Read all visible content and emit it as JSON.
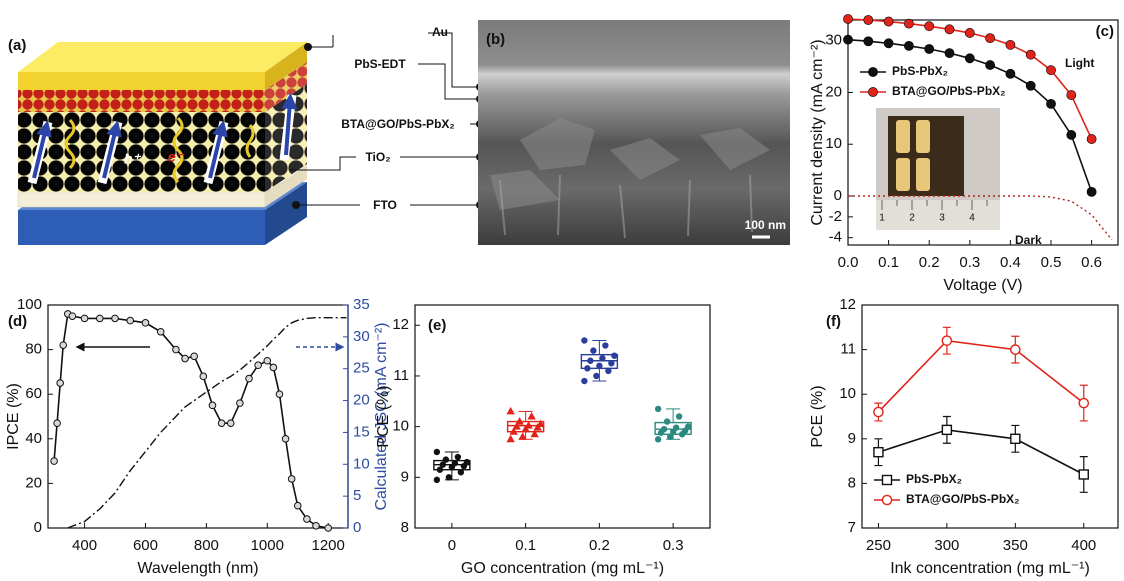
{
  "panel_a": {
    "panel_label": "(a)",
    "layers": [
      "Au",
      "PbS-EDT",
      "BTA@GO/PbS-PbX₂",
      "TiO₂",
      "FTO"
    ],
    "carriers": [
      "h⁺",
      "e⁻"
    ]
  },
  "panel_b": {
    "panel_label": "(b)",
    "scale_bar": "100 nm"
  },
  "chart_data": [
    {
      "type": "line",
      "panel_label": "(c)",
      "x_label": "Voltage (V)",
      "y_label": "Current density (mA cm⁻²)",
      "x": [
        0,
        0.05,
        0.1,
        0.15,
        0.2,
        0.25,
        0.3,
        0.35,
        0.4,
        0.45,
        0.5,
        0.55,
        0.6,
        0.65
      ],
      "xlim": [
        0,
        0.665
      ],
      "xticks": [
        {
          "value": 0,
          "label": "0.0"
        },
        0.1,
        0.2,
        0.3,
        0.4,
        0.5,
        0.6
      ],
      "ylim": [
        -4.7,
        34
      ],
      "y_break": 0,
      "yticks": [
        -4,
        -2,
        0,
        10,
        20,
        30
      ],
      "legend": "upper left",
      "series": [
        {
          "name": "PbS-PbX₂",
          "color": "#111111",
          "marker": "ball",
          "values": [
            30.2,
            29.9,
            29.5,
            29.0,
            28.4,
            27.6,
            26.6,
            25.3,
            23.6,
            21.3,
            17.8,
            11.8,
            0.8,
            null
          ]
        },
        {
          "name": "BTA@GO/PbS-PbX₂",
          "color": "#e0241b",
          "marker": "ball",
          "values": [
            34.2,
            34.0,
            33.7,
            33.3,
            32.8,
            32.2,
            31.5,
            30.5,
            29.2,
            27.3,
            24.3,
            19.5,
            11.0,
            null
          ]
        },
        {
          "color": "#b5261e",
          "dash": "dot",
          "values": [
            0,
            0,
            0,
            0,
            0,
            0,
            0,
            0,
            0,
            0,
            -0.1,
            -0.5,
            -1.8,
            -4.2
          ]
        }
      ],
      "annotations": [
        "Light",
        "Dark"
      ],
      "inset_labels": [
        "1",
        "2",
        "3",
        "4"
      ]
    },
    {
      "type": "line",
      "panel_label": "(d)",
      "x_label": "Wavelength (nm)",
      "y_label": "IPCE (%)",
      "y2_label": "Calculated JSC (mA cm⁻²)",
      "x": [
        300,
        310,
        320,
        330,
        345,
        360,
        400,
        450,
        500,
        550,
        600,
        650,
        700,
        730,
        760,
        790,
        820,
        850,
        880,
        910,
        940,
        970,
        1000,
        1020,
        1040,
        1060,
        1080,
        1100,
        1130,
        1160,
        1200,
        1260
      ],
      "xlim": [
        280,
        1265
      ],
      "xticks": [
        400,
        600,
        800,
        1000,
        1200
      ],
      "ylim": [
        0,
        100
      ],
      "yticks": [
        0,
        20,
        40,
        60,
        80,
        100
      ],
      "y2lim": [
        0,
        35
      ],
      "y2ticks": [
        0,
        5,
        10,
        15,
        20,
        25,
        30,
        35
      ],
      "y2_color": "#2f4da0",
      "series": [
        {
          "color": "#111111",
          "marker": "half",
          "values": [
            30,
            47,
            65,
            82,
            96,
            95,
            94,
            94,
            94,
            93,
            92,
            88,
            80,
            76,
            77,
            68,
            55,
            47,
            47,
            56,
            67,
            73,
            75,
            72,
            60,
            40,
            22,
            10,
            4,
            1,
            0,
            null
          ]
        },
        {
          "color": "#111111",
          "dash": "dashdot",
          "axis": "y2",
          "values": [
            null,
            null,
            null,
            null,
            0,
            0.3,
            1,
            3,
            5.5,
            9,
            12,
            15,
            17.5,
            19,
            20,
            21,
            22,
            23,
            23.8,
            24.8,
            26,
            27.3,
            28.6,
            29.6,
            30.5,
            31.5,
            32.2,
            32.6,
            32.9,
            33,
            33,
            33
          ]
        }
      ]
    },
    {
      "type": "box",
      "panel_label": "(e)",
      "x_label": "GO concentration (mg mL⁻¹)",
      "y_label": "PCE (%)",
      "categories": [
        "0",
        "0.1",
        "0.2",
        "0.3"
      ],
      "ylim": [
        8,
        12.4
      ],
      "yticks": [
        8,
        9,
        10,
        11,
        12
      ],
      "boxes": [
        {
          "color": "#111111",
          "marker": "dot",
          "whisker_low": 8.95,
          "q1": 9.15,
          "median": 9.25,
          "q3": 9.33,
          "whisker_high": 9.5,
          "points": [
            9.5,
            9.4,
            9.35,
            9.3,
            9.28,
            9.25,
            9.22,
            9.2,
            9.15,
            9.1,
            9.0,
            8.95
          ]
        },
        {
          "color": "#e0241b",
          "marker": "triangle",
          "whisker_low": 9.75,
          "q1": 9.9,
          "median": 10.02,
          "q3": 10.1,
          "whisker_high": 10.3,
          "points": [
            10.3,
            10.2,
            10.1,
            10.05,
            10.02,
            10.0,
            9.98,
            9.95,
            9.9,
            9.85,
            9.8,
            9.75
          ]
        },
        {
          "color": "#2a3f9d",
          "marker": "dot",
          "whisker_low": 10.9,
          "q1": 11.15,
          "median": 11.3,
          "q3": 11.42,
          "whisker_high": 11.7,
          "points": [
            11.7,
            11.6,
            11.5,
            11.4,
            11.35,
            11.3,
            11.25,
            11.2,
            11.15,
            11.1,
            11.0,
            10.9
          ]
        },
        {
          "color": "#2a8a80",
          "marker": "dot",
          "whisker_low": 9.75,
          "q1": 9.85,
          "median": 9.95,
          "q3": 10.08,
          "whisker_high": 10.35,
          "points": [
            10.35,
            10.2,
            10.1,
            10.0,
            9.98,
            9.95,
            9.92,
            9.9,
            9.88,
            9.85,
            9.8,
            9.75
          ]
        }
      ]
    },
    {
      "type": "line",
      "panel_label": "(f)",
      "x_label": "Ink concentration (mg mL⁻¹)",
      "y_label": "PCE (%)",
      "x": [
        250,
        300,
        350,
        400
      ],
      "xlim": [
        238,
        425
      ],
      "xticks": [
        250,
        300,
        350,
        400
      ],
      "ylim": [
        7,
        12
      ],
      "yticks": [
        7,
        8,
        9,
        10,
        11,
        12
      ],
      "legend": "lower left",
      "series": [
        {
          "name": "PbS-PbX₂",
          "color": "#111111",
          "marker": "open-square",
          "values": [
            8.7,
            9.2,
            9.0,
            8.2
          ],
          "errors": [
            0.3,
            0.3,
            0.3,
            0.4
          ]
        },
        {
          "name": "BTA@GO/PbS-PbX₂",
          "color": "#e0241b",
          "marker": "open-circle",
          "values": [
            9.6,
            11.2,
            11.0,
            9.8
          ],
          "errors": [
            0.2,
            0.3,
            0.3,
            0.4
          ]
        }
      ]
    }
  ]
}
